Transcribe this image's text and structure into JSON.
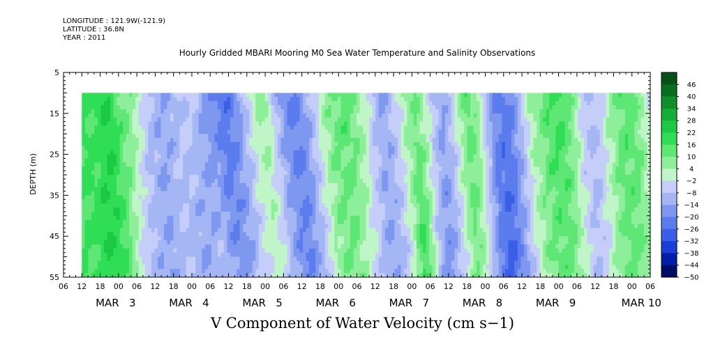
{
  "header": {
    "longitude": "LONGITUDE : 121.9W(-121.9)",
    "latitude": "LATITUDE : 36.8N",
    "year": "YEAR : 2011"
  },
  "chart_data": {
    "type": "heatmap",
    "title": "Hourly Gridded MBARI Mooring M0 Sea Water Temperature and Salinity Observations",
    "xlabel": "V Component of Water Velocity (cm s−1)",
    "ylabel": "DEPTH (m)",
    "y_axis_inverted": true,
    "ylim": [
      5,
      55
    ],
    "y_ticks": [
      "5",
      "15",
      "25",
      "35",
      "45",
      "55"
    ],
    "data_depth_range": [
      10,
      55
    ],
    "x_time_range": [
      "2011-03-02 06:00",
      "2011-03-10 06:00"
    ],
    "data_time_range": [
      "2011-03-02 12:00",
      "2011-03-10 06:00"
    ],
    "x_hour_ticks": [
      "06",
      "12",
      "18",
      "00",
      "06",
      "12",
      "18",
      "00",
      "06",
      "12",
      "18",
      "00",
      "06",
      "12",
      "18",
      "00",
      "06",
      "12",
      "18",
      "00",
      "06",
      "12",
      "18",
      "00",
      "06",
      "12",
      "18",
      "00",
      "06",
      "12",
      "18",
      "00",
      "06"
    ],
    "x_day_labels": [
      {
        "label": "MAR  3",
        "hour": 18
      },
      {
        "label": "MAR  4",
        "hour": 42
      },
      {
        "label": "MAR  5",
        "hour": 66
      },
      {
        "label": "MAR  6",
        "hour": 90
      },
      {
        "label": "MAR  7",
        "hour": 114
      },
      {
        "label": "MAR  8",
        "hour": 138
      },
      {
        "label": "MAR  9",
        "hour": 162
      },
      {
        "label": "MAR 10",
        "hour": 190
      }
    ],
    "colorbar": {
      "labels": [
        "46",
        "40",
        "34",
        "28",
        "22",
        "16",
        "10",
        "4",
        "−2",
        "−8",
        "−14",
        "−20",
        "−26",
        "−32",
        "−38",
        "−44",
        "−50"
      ],
      "min": -50,
      "max": 52,
      "colors": [
        "#e8faee",
        "#000d66",
        "#001fa8",
        "#1a3fd6",
        "#3a5fe6",
        "#5a7cec",
        "#7e98f0",
        "#a4b6f4",
        "#c4cef8",
        "#bff5c7",
        "#8eef9b",
        "#5ee774",
        "#2fde55",
        "#1cc944",
        "#14ad37",
        "#0e8f2b",
        "#086f1f",
        "#04521a"
      ]
    },
    "values_description": "V velocity in cm/s, ranging roughly -35 to +35 across the record; grid estimated from the image",
    "v_profile_surface": [
      18,
      16,
      20,
      22,
      14,
      10,
      5,
      -4,
      -10,
      -14,
      -12,
      -8,
      -6,
      -10,
      -16,
      -20,
      -26,
      -22,
      -14,
      -4,
      6,
      4,
      -8,
      -18,
      -22,
      -18,
      -10,
      0,
      8,
      12,
      14,
      10,
      4,
      -6,
      -14,
      -10,
      -2,
      6,
      10,
      4,
      -6,
      -14,
      -8,
      4,
      14,
      8,
      -6,
      -18,
      -22,
      -20,
      -10,
      2,
      8,
      14,
      18,
      16,
      8,
      -4,
      -10,
      -6,
      2,
      10,
      14,
      12,
      4,
      -2
    ],
    "v_profile_bottom": [
      16,
      18,
      22,
      20,
      16,
      6,
      -6,
      -10,
      -12,
      -14,
      -10,
      -8,
      -12,
      -14,
      -12,
      -8,
      -14,
      -18,
      -16,
      -10,
      -4,
      2,
      -2,
      -10,
      -18,
      -22,
      -14,
      -6,
      4,
      8,
      10,
      6,
      0,
      -6,
      -12,
      -14,
      -8,
      2,
      20,
      6,
      -12,
      -18,
      -10,
      0,
      10,
      4,
      -10,
      -24,
      -28,
      -22,
      -12,
      -2,
      6,
      10,
      12,
      10,
      4,
      -4,
      -8,
      -4,
      4,
      10,
      12,
      10,
      6,
      -4
    ]
  }
}
